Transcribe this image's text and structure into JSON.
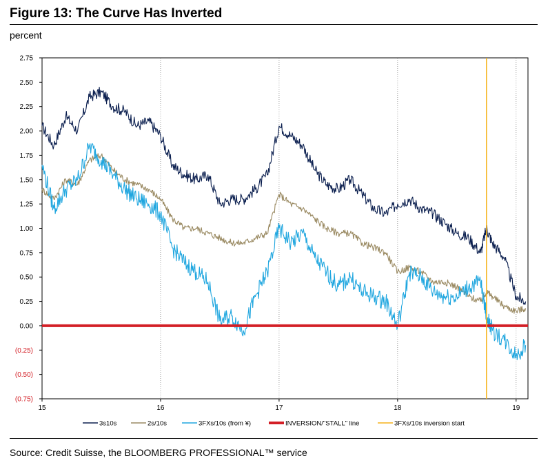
{
  "title": "Figure 13: The Curve Has Inverted",
  "unit_label": "percent",
  "source": "Source: Credit Suisse, the BLOOMBERG PROFESSIONAL™ service",
  "chart_data": {
    "type": "line",
    "title": "Figure 13: The Curve Has Inverted",
    "ylabel": "percent",
    "xlabel": "",
    "ylim": [
      -0.75,
      2.75
    ],
    "xlim": [
      15,
      19.1
    ],
    "y_ticks": [
      {
        "value": 2.75,
        "label": "2.75"
      },
      {
        "value": 2.5,
        "label": "2.50"
      },
      {
        "value": 2.25,
        "label": "2.25"
      },
      {
        "value": 2.0,
        "label": "2.00"
      },
      {
        "value": 1.75,
        "label": "1.75"
      },
      {
        "value": 1.5,
        "label": "1.50"
      },
      {
        "value": 1.25,
        "label": "1.25"
      },
      {
        "value": 1.0,
        "label": "1.00"
      },
      {
        "value": 0.75,
        "label": "0.75"
      },
      {
        "value": 0.5,
        "label": "0.50"
      },
      {
        "value": 0.25,
        "label": "0.25"
      },
      {
        "value": 0.0,
        "label": "0.00"
      },
      {
        "value": -0.25,
        "label": "(0.25)"
      },
      {
        "value": -0.5,
        "label": "(0.50)"
      },
      {
        "value": -0.75,
        "label": "(0.75)"
      }
    ],
    "x_ticks": [
      {
        "value": 15,
        "label": "15"
      },
      {
        "value": 16,
        "label": "16"
      },
      {
        "value": 17,
        "label": "17"
      },
      {
        "value": 18,
        "label": "18"
      },
      {
        "value": 19,
        "label": "19"
      }
    ],
    "inversion_line_value": 0.0,
    "inversion_start_x": 18.75,
    "series": [
      {
        "name": "3s10s",
        "color": "#0b1f4f",
        "x": [
          15.0,
          15.1,
          15.2,
          15.3,
          15.4,
          15.5,
          15.6,
          15.7,
          15.8,
          15.9,
          16.0,
          16.1,
          16.2,
          16.3,
          16.4,
          16.5,
          16.6,
          16.7,
          16.8,
          16.9,
          17.0,
          17.1,
          17.2,
          17.3,
          17.4,
          17.5,
          17.6,
          17.7,
          17.8,
          17.9,
          18.0,
          18.1,
          18.2,
          18.3,
          18.4,
          18.5,
          18.6,
          18.7,
          18.75,
          18.8,
          18.9,
          19.0,
          19.08
        ],
        "values": [
          2.05,
          1.85,
          2.15,
          2.0,
          2.35,
          2.4,
          2.25,
          2.2,
          2.05,
          2.1,
          1.95,
          1.65,
          1.55,
          1.5,
          1.55,
          1.25,
          1.3,
          1.3,
          1.4,
          1.55,
          2.05,
          1.95,
          1.85,
          1.6,
          1.45,
          1.4,
          1.5,
          1.35,
          1.2,
          1.15,
          1.25,
          1.3,
          1.2,
          1.15,
          1.05,
          0.95,
          0.9,
          0.75,
          1.0,
          0.85,
          0.7,
          0.3,
          0.25
        ]
      },
      {
        "name": "2s/10s",
        "color": "#9a8a62",
        "x": [
          15.0,
          15.1,
          15.2,
          15.3,
          15.4,
          15.5,
          15.6,
          15.7,
          15.8,
          15.9,
          16.0,
          16.1,
          16.2,
          16.3,
          16.4,
          16.5,
          16.6,
          16.7,
          16.8,
          16.9,
          17.0,
          17.1,
          17.2,
          17.3,
          17.4,
          17.5,
          17.6,
          17.7,
          17.8,
          17.9,
          18.0,
          18.1,
          18.2,
          18.3,
          18.4,
          18.5,
          18.6,
          18.7,
          18.75,
          18.8,
          18.9,
          19.0,
          19.08
        ],
        "values": [
          1.4,
          1.3,
          1.5,
          1.45,
          1.7,
          1.75,
          1.6,
          1.5,
          1.45,
          1.4,
          1.3,
          1.1,
          1.0,
          1.0,
          0.95,
          0.9,
          0.85,
          0.85,
          0.9,
          0.95,
          1.35,
          1.25,
          1.2,
          1.1,
          1.0,
          0.95,
          0.95,
          0.85,
          0.8,
          0.75,
          0.55,
          0.6,
          0.55,
          0.45,
          0.45,
          0.4,
          0.3,
          0.25,
          0.35,
          0.3,
          0.2,
          0.15,
          0.18
        ]
      },
      {
        "name": "3FXs/10s (from ¥)",
        "color": "#1fa6df",
        "x": [
          15.0,
          15.1,
          15.2,
          15.3,
          15.4,
          15.5,
          15.6,
          15.7,
          15.8,
          15.9,
          16.0,
          16.1,
          16.2,
          16.3,
          16.4,
          16.5,
          16.6,
          16.7,
          16.8,
          16.9,
          17.0,
          17.1,
          17.2,
          17.3,
          17.4,
          17.5,
          17.6,
          17.7,
          17.8,
          17.9,
          18.0,
          18.1,
          18.2,
          18.3,
          18.4,
          18.5,
          18.6,
          18.7,
          18.75,
          18.8,
          18.9,
          19.0,
          19.08
        ],
        "values": [
          1.65,
          1.2,
          1.4,
          1.5,
          1.85,
          1.7,
          1.55,
          1.4,
          1.3,
          1.25,
          1.15,
          0.8,
          0.65,
          0.55,
          0.45,
          0.05,
          0.1,
          -0.05,
          0.3,
          0.55,
          1.0,
          0.85,
          0.95,
          0.7,
          0.55,
          0.4,
          0.5,
          0.35,
          0.3,
          0.25,
          0.0,
          0.55,
          0.5,
          0.35,
          0.3,
          0.3,
          0.4,
          0.45,
          0.1,
          -0.05,
          -0.15,
          -0.3,
          -0.2
        ]
      }
    ],
    "legend": [
      {
        "label": "3s10s",
        "color": "#0b1f4f"
      },
      {
        "label": "2s/10s",
        "color": "#9a8a62"
      },
      {
        "label": "3FXs/10s (from ¥)",
        "color": "#1fa6df"
      },
      {
        "label": "INVERSION/\"STALL\" line",
        "color": "#d31f26"
      },
      {
        "label": "3FXs/10s inversion start",
        "color": "#f6b21a"
      }
    ],
    "colors": {
      "negative_tick": "#d31f26",
      "grid": "#888888",
      "inversion": "#d31f26",
      "marker": "#f6b21a"
    }
  }
}
